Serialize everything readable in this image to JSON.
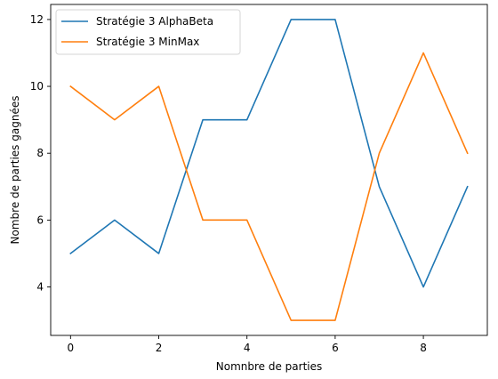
{
  "chart_data": {
    "type": "line",
    "title": "",
    "xlabel": "Nomnbre de parties",
    "ylabel": "Nombre de parties gagnées",
    "x": [
      0,
      1,
      2,
      3,
      4,
      5,
      6,
      7,
      8,
      9
    ],
    "xlim": [
      -0.45,
      9.45
    ],
    "ylim": [
      2.55,
      12.45
    ],
    "xticks": [
      0,
      2,
      4,
      6,
      8
    ],
    "yticks": [
      4,
      6,
      8,
      10,
      12
    ],
    "grid": false,
    "legend_position": "upper-left",
    "series": [
      {
        "name": "Stratégie 3 AlphaBeta",
        "color": "#1f77b4",
        "values": [
          5,
          6,
          5,
          9,
          9,
          12,
          12,
          7,
          4,
          7
        ]
      },
      {
        "name": "Stratégie 3 MinMax",
        "color": "#ff7f0e",
        "values": [
          10,
          9,
          10,
          6,
          6,
          3,
          3,
          8,
          11,
          8
        ]
      }
    ]
  }
}
